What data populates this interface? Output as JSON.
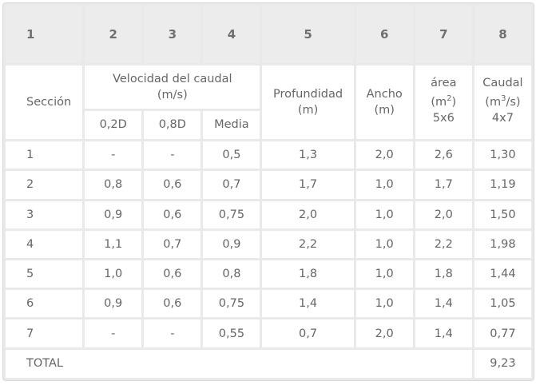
{
  "column_numbers": [
    "1",
    "2",
    "3",
    "4",
    "5",
    "6",
    "7",
    "8"
  ],
  "headers": {
    "seccion": "Sección",
    "velocidad": "Velocidad del caudal",
    "velocidad_unit": "(m/s)",
    "sub_02d": "0,2D",
    "sub_08d": "0,8D",
    "sub_media": "Media",
    "profundidad": "Profundidad",
    "profundidad_unit": "(m)",
    "ancho": "Ancho",
    "ancho_unit": "(m)",
    "area": "área",
    "area_unit_open": "(m",
    "area_unit_exp": "2",
    "area_unit_close": ")",
    "area_formula": "5x6",
    "caudal": "Caudal",
    "caudal_unit_open": "(m",
    "caudal_unit_exp": "3",
    "caudal_unit_close": "/s)",
    "caudal_formula": "4x7"
  },
  "rows": [
    [
      "1",
      "-",
      "-",
      "0,5",
      "1,3",
      "2,0",
      "2,6",
      "1,30"
    ],
    [
      "2",
      "0,8",
      "0,6",
      "0,7",
      "1,7",
      "1,0",
      "1,7",
      "1,19"
    ],
    [
      "3",
      "0,9",
      "0,6",
      "0,75",
      "2,0",
      "1,0",
      "2,0",
      "1,50"
    ],
    [
      "4",
      "1,1",
      "0,7",
      "0,9",
      "2,2",
      "1,0",
      "2,2",
      "1,98"
    ],
    [
      "5",
      "1,0",
      "0,6",
      "0,8",
      "1,8",
      "1,0",
      "1,8",
      "1,44"
    ],
    [
      "6",
      "0,9",
      "0,6",
      "0,75",
      "1,4",
      "1,0",
      "1,4",
      "1,05"
    ],
    [
      "7",
      "-",
      "-",
      "0,55",
      "0,7",
      "2,0",
      "1,4",
      "0,77"
    ]
  ],
  "total": {
    "label": "TOTAL",
    "value": "9,23"
  }
}
